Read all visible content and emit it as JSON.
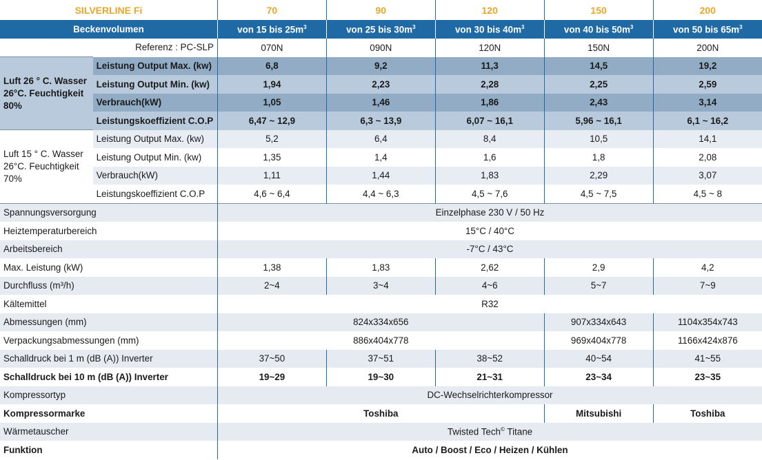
{
  "header": {
    "title": "SILVERLINE Fi",
    "models": [
      "70",
      "90",
      "120",
      "150",
      "200"
    ],
    "pool_label": "Beckenvolumen",
    "pool_volumes": [
      "von 15 bis 25m",
      "von 25 bis 30m",
      "von 30 bis 40m",
      "von 40 bis 50m",
      "von 50 bis 65m"
    ],
    "cube_sup": "3",
    "reference_label": "Referenz : PC-SLP",
    "references": [
      "070N",
      "090N",
      "120N",
      "150N",
      "200N"
    ]
  },
  "group1": {
    "label": "Luft 26 ° C. Wasser 26°C. Feuchtigkeit 80%",
    "rows": [
      {
        "label": "Leistung Output Max. (kw)",
        "values": [
          "6,8",
          "9,2",
          "11,3",
          "14,5",
          "19,2"
        ]
      },
      {
        "label": "Leistung Output Min. (kw)",
        "values": [
          "1,94",
          "2,23",
          "2,28",
          "2,25",
          "2,59"
        ]
      },
      {
        "label": "Verbrauch(kW)",
        "values": [
          "1,05",
          "1,46",
          "1,86",
          "2,43",
          "3,14"
        ]
      },
      {
        "label": "Leistungskoeffizient C.O.P",
        "values": [
          "6,47 ~ 12,9",
          "6,3 ~ 13,9",
          "6,07 ~ 16,1",
          "5,96 ~ 16,1",
          "6,1 ~ 16,2"
        ]
      }
    ]
  },
  "group2": {
    "label": "Luft 15 ° C. Wasser 26°C. Feuchtigkeit 70%",
    "rows": [
      {
        "label": "Leistung Output Max. (kw)",
        "values": [
          "5,2",
          "6,4",
          "8,4",
          "10,5",
          "14,1"
        ]
      },
      {
        "label": "Leistung Output Min. (kw)",
        "values": [
          "1,35",
          "1,4",
          "1,6",
          "1,8",
          "2,08"
        ]
      },
      {
        "label": "Verbrauch(kW)",
        "values": [
          "1,11",
          "1,44",
          "1,83",
          "2,29",
          "3,07"
        ]
      },
      {
        "label": "Leistungskoeffizient C.O.P",
        "values": [
          "4,6 ~ 6,4",
          "4,4 ~ 6,3",
          "4,5 ~ 7,6",
          "4,5 ~ 7,5",
          "4,5 ~ 8"
        ]
      }
    ]
  },
  "specs": {
    "voltage": {
      "label": "Spannungsversorgung",
      "value": "Einzelphase 230 V / 50 Hz"
    },
    "heat_temp": {
      "label": "Heiztemperaturbereich",
      "value": "15°C / 40°C"
    },
    "work_range": {
      "label": "Arbeitsbereich",
      "value": "-7°C / 43°C"
    },
    "max_power": {
      "label": "Max. Leistung (kW)",
      "values": [
        "1,38",
        "1,83",
        "2,62",
        "2,9",
        "4,2"
      ]
    },
    "flow": {
      "label": "Durchfluss (m³/h)",
      "values": [
        "2~4",
        "3~4",
        "4~6",
        "5~7",
        "7~9"
      ]
    },
    "refrigerant": {
      "label": "Kältemittel",
      "value": "R32"
    },
    "dimensions": {
      "label": "Abmessungen (mm)",
      "value_a": "824x334x656",
      "value_b": "907x334x643",
      "value_c": "1104x354x743"
    },
    "packaging": {
      "label": "Verpackungsabmessungen (mm)",
      "value_a": "886x404x778",
      "value_b": "969x404x778",
      "value_c": "1166x424x876"
    },
    "noise1": {
      "label": "Schalldruck bei 1 m (dB (A)) Inverter",
      "values": [
        "37~50",
        "37~51",
        "38~52",
        "40~54",
        "41~55"
      ]
    },
    "noise10": {
      "label": "Schalldruck bei 10 m (dB (A)) Inverter",
      "values": [
        "19~29",
        "19~30",
        "21~31",
        "23~34",
        "23~35"
      ]
    },
    "compressor_type": {
      "label": "Kompressortyp",
      "value": "DC-Wechselrichterkompressor"
    },
    "compressor_brand": {
      "label": "Kompressormarke",
      "value_a": "Toshiba",
      "value_b": "Mitsubishi",
      "value_c": "Toshiba"
    },
    "exchanger": {
      "label": "Wärmetauscher",
      "value": "Twisted Tech",
      "sup": "©",
      "suffix": " Titane"
    },
    "function": {
      "label": "Funktion",
      "value": "Auto / Boost / Eco / Heizen / Kühlen"
    }
  },
  "colors": {
    "title": "#eaa62a",
    "header_blue": "#1f6aa5",
    "row_blue_dark": "#91acc4",
    "row_blue_light": "#b8cadc",
    "row_grey": "#e6ebf1"
  }
}
